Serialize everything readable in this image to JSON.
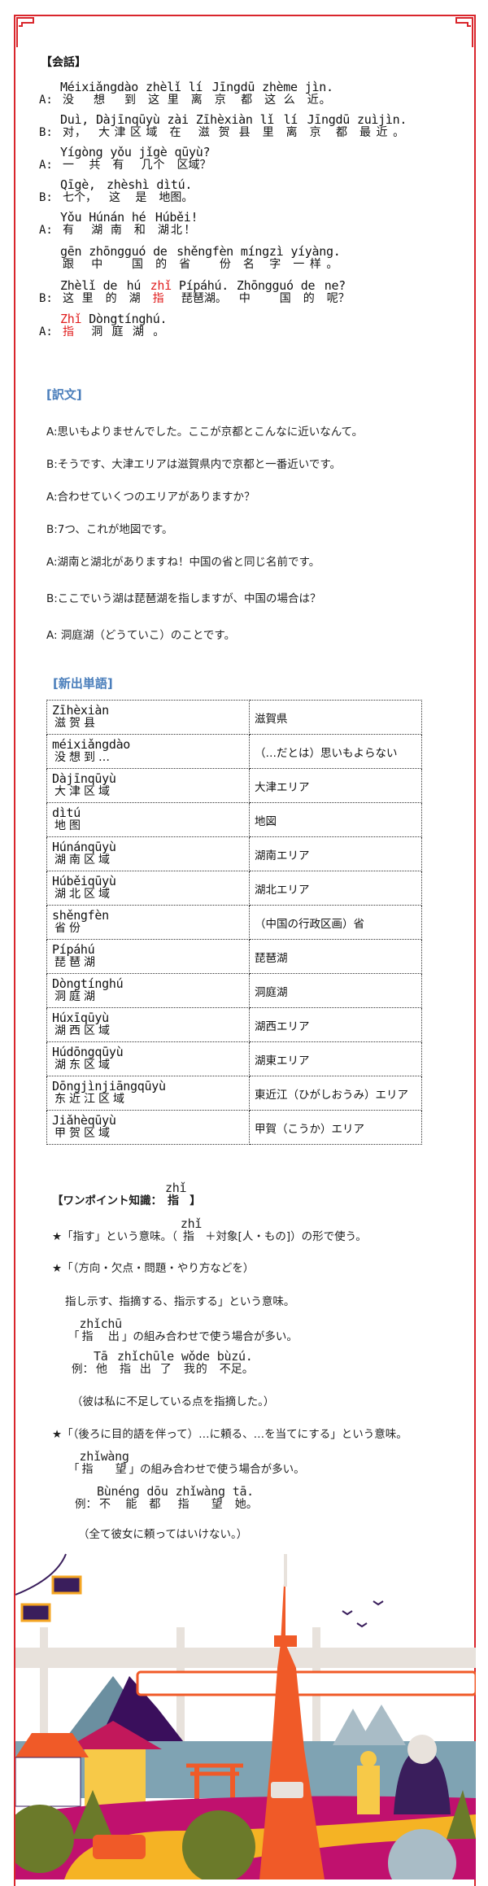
{
  "colors": {
    "frame": "#d9262c",
    "heading_blue": "#4a7ebb",
    "highlight": "#e01b1b"
  },
  "conversation": {
    "heading": "【会話】",
    "lines": [
      {
        "speaker": "A:",
        "tokens": [
          [
            "Méixiǎngdào",
            "没想到"
          ],
          [
            "zhèlǐ",
            "这里"
          ],
          [
            "lí",
            "离"
          ],
          [
            "Jīngdū",
            "京都"
          ],
          [
            "zhème",
            "这么"
          ],
          [
            "jìn.",
            "近。"
          ]
        ]
      },
      {
        "speaker": "B:",
        "tokens": [
          [
            "Duì,",
            "对，"
          ],
          [
            "Dàjīnqūyù",
            "大津区域"
          ],
          [
            "zài",
            "在"
          ],
          [
            "Zīhèxiàn",
            "滋贺县"
          ],
          [
            "lǐ",
            "里"
          ],
          [
            "lí",
            "离"
          ],
          [
            "Jīngdū",
            "京都"
          ],
          [
            "zuìjìn.",
            "最近。"
          ]
        ]
      },
      {
        "speaker": "A:",
        "tokens": [
          [
            "Yígòng",
            "一共"
          ],
          [
            "yǒu",
            "有"
          ],
          [
            "jǐgè",
            "几个"
          ],
          [
            "qūyù?",
            "区域？"
          ]
        ]
      },
      {
        "speaker": "B:",
        "tokens": [
          [
            "Qīgè,",
            "七个，"
          ],
          [
            "zhèshì",
            "这是"
          ],
          [
            "dìtú.",
            "地图。"
          ]
        ]
      },
      {
        "speaker": "A:",
        "tokens": [
          [
            "Yǒu",
            "有"
          ],
          [
            "Húnán",
            "湖南"
          ],
          [
            "hé",
            "和"
          ],
          [
            "Húběi!",
            "湖北！"
          ]
        ]
      },
      {
        "speaker": "",
        "tokens": [
          [
            "gēn",
            "跟"
          ],
          [
            "zhōngguó",
            "中国"
          ],
          [
            "de",
            "的"
          ],
          [
            "shěngfèn",
            "省份"
          ],
          [
            "míngzì",
            "名字"
          ],
          [
            "yíyàng.",
            "一样。"
          ]
        ]
      },
      {
        "speaker": "B:",
        "tokens": [
          [
            "Zhèlǐ",
            "这里"
          ],
          [
            "de",
            "的"
          ],
          [
            "hú",
            "湖"
          ],
          [
            "zhǐ",
            "指",
            "red"
          ],
          [
            "Pípáhú.",
            "琵琶湖。"
          ],
          [
            "Zhōngguó",
            "中国"
          ],
          [
            "de",
            "的"
          ],
          [
            "ne?",
            "呢？"
          ]
        ]
      },
      {
        "speaker": "A:",
        "tokens": [
          [
            "Zhǐ",
            "指",
            "red"
          ],
          [
            "Dòngtínghú.",
            "洞庭湖。"
          ]
        ]
      }
    ]
  },
  "translation": {
    "heading": "[訳文]",
    "lines": [
      "A:思いもよりませんでした。ここが京都とこんなに近いなんて。",
      "B:そうです、大津エリアは滋賀県内で京都と一番近いです。",
      "A:合わせていくつのエリアがありますか？",
      "B:7つ、これが地図です。",
      "A:湖南と湖北がありますね！中国の省と同じ名前です。",
      "B:ここでいう湖は琵琶湖を指しますが、中国の場合は？",
      "A: 洞庭湖（どうていこ）のことです。"
    ]
  },
  "vocabulary": {
    "heading": "[新出単語]",
    "rows": [
      {
        "pinyin": "Zīhèxiàn",
        "hanzi": "滋贺县",
        "meaning": "滋賀県"
      },
      {
        "pinyin": "méixiǎngdào",
        "hanzi": "没想到…",
        "meaning": "（…だとは）思いもよらない"
      },
      {
        "pinyin": "Dàjīnqūyù",
        "hanzi": "大津区域",
        "meaning": "大津エリア"
      },
      {
        "pinyin": "dìtú",
        "hanzi": "地图",
        "meaning": "地図"
      },
      {
        "pinyin": "Húnánqūyù",
        "hanzi": "湖南区域",
        "meaning": "湖南エリア"
      },
      {
        "pinyin": "Húběiqūyù",
        "hanzi": "湖北区域",
        "meaning": "湖北エリア"
      },
      {
        "pinyin": "shěngfèn",
        "hanzi": "省份",
        "meaning": "（中国の行政区画）省"
      },
      {
        "pinyin": "Pípáhú",
        "hanzi": "琵琶湖",
        "meaning": "琵琶湖"
      },
      {
        "pinyin": "Dòngtínghú",
        "hanzi": "洞庭湖",
        "meaning": "洞庭湖"
      },
      {
        "pinyin": "Húxīqūyù",
        "hanzi": "湖西区域",
        "meaning": "湖西エリア"
      },
      {
        "pinyin": "Húdōngqūyù",
        "hanzi": "湖东区域",
        "meaning": "湖東エリア"
      },
      {
        "pinyin": "Dōngjìnjiāngqūyù",
        "hanzi": "东近江区域",
        "meaning": "東近江（ひがしおうみ）エリア"
      },
      {
        "pinyin": "Jiǎhèqūyù",
        "hanzi": "甲贺区域",
        "meaning": "甲賀（こうか）エリア"
      }
    ]
  },
  "onepoint": {
    "heading_pre": "【ワンポイント知識：",
    "heading_py": "zhǐ",
    "heading_hz": "指",
    "heading_post": "】",
    "p1_pre": "★「指す」という意味。（",
    "p1_py": "zhǐ",
    "p1_hz": "指",
    "p1_post": "＋対象[人・もの]）の形で使う。",
    "p2a": "★「（方向・欠点・問題・やり方などを）",
    "p2b": "指し示す、指摘する、指示する」という意味。",
    "combo1_open": "「",
    "combo1_py": "zhǐchū",
    "combo1_hz": "指  出",
    "combo1_post": "」の組み合わせで使う場合が多い。",
    "ex1_label": "例：",
    "ex1_tokens": [
      [
        "Tā",
        "他"
      ],
      [
        "zhǐchūle",
        "指出了"
      ],
      [
        "wǒde",
        "我的"
      ],
      [
        "bùzú.",
        "不足。"
      ]
    ],
    "ex1_tr": "（彼は私に不足している点を指摘した。）",
    "p3": "★「（後ろに目的語を伴って）…に頼る、…を当てにする」という意味。",
    "combo2_open": "「",
    "combo2_py": "zhǐwàng",
    "combo2_hz": "指  望",
    "combo2_post": "」の組み合わせで使う場合が多い。",
    "ex2_label": "例：",
    "ex2_tokens": [
      [
        "Bùnéng",
        "不能"
      ],
      [
        "dōu",
        "都"
      ],
      [
        "zhǐwàng",
        "指望"
      ],
      [
        "tā.",
        "她。"
      ]
    ],
    "ex2_tr": "（全て彼女に頼ってはいけない。）"
  },
  "illustration": {
    "icon": "japan-landmarks-illustration"
  }
}
